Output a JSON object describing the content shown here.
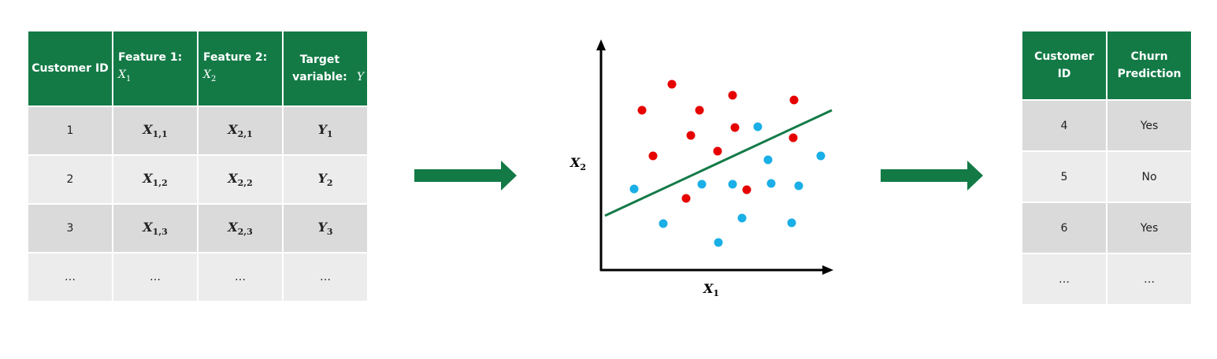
{
  "training_table": {
    "headers": [
      {
        "text": "Customer ID"
      },
      {
        "text": "Feature 1:",
        "symbol": "X",
        "sub": "1"
      },
      {
        "text": "Feature 2:",
        "symbol": "X",
        "sub": "2"
      },
      {
        "text": "Target variable:",
        "symbol": "Y",
        "sub": ""
      }
    ],
    "rows": [
      {
        "id": "1",
        "x1": "X",
        "x1_sub": "1,1",
        "x2": "X",
        "x2_sub": "2,1",
        "y": "Y",
        "y_sub": "1"
      },
      {
        "id": "2",
        "x1": "X",
        "x1_sub": "1,2",
        "x2": "X",
        "x2_sub": "2,2",
        "y": "Y",
        "y_sub": "2"
      },
      {
        "id": "3",
        "x1": "X",
        "x1_sub": "1,3",
        "x2": "X",
        "x2_sub": "2,3",
        "y": "Y",
        "y_sub": "3"
      },
      {
        "id": "…",
        "x1": "…",
        "x1_sub": "",
        "x2": "…",
        "x2_sub": "",
        "y": "…",
        "y_sub": ""
      }
    ]
  },
  "scatter": {
    "x_axis_label": "X",
    "x_axis_sub": "1",
    "y_axis_label": "X",
    "y_axis_sub": "2",
    "colors": {
      "class_red": "#e60000",
      "class_blue": "#1aafe6",
      "boundary": "#137a46",
      "axis": "#000000"
    },
    "points_red": [
      [
        815,
        140
      ],
      [
        853,
        107
      ],
      [
        888,
        140
      ],
      [
        930,
        121
      ],
      [
        1008,
        127
      ],
      [
        829,
        198
      ],
      [
        877,
        172
      ],
      [
        933,
        162
      ],
      [
        911,
        192
      ],
      [
        1007,
        175
      ],
      [
        948,
        241
      ],
      [
        871,
        252
      ]
    ],
    "points_blue": [
      [
        962,
        161
      ],
      [
        975,
        203
      ],
      [
        1042,
        198
      ],
      [
        805,
        240
      ],
      [
        891,
        234
      ],
      [
        930,
        234
      ],
      [
        979,
        233
      ],
      [
        1014,
        236
      ],
      [
        842,
        284
      ],
      [
        942,
        277
      ],
      [
        1005,
        283
      ],
      [
        912,
        308
      ]
    ],
    "boundary_line": [
      [
        768,
        274
      ],
      [
        1056,
        140
      ]
    ]
  },
  "prediction_table": {
    "headers": [
      "Customer ID",
      "Churn Prediction"
    ],
    "rows": [
      {
        "id": "4",
        "prediction": "Yes"
      },
      {
        "id": "5",
        "prediction": "No"
      },
      {
        "id": "6",
        "prediction": "Yes"
      },
      {
        "id": "…",
        "prediction": "…"
      }
    ]
  },
  "flow_color": "#137a46"
}
